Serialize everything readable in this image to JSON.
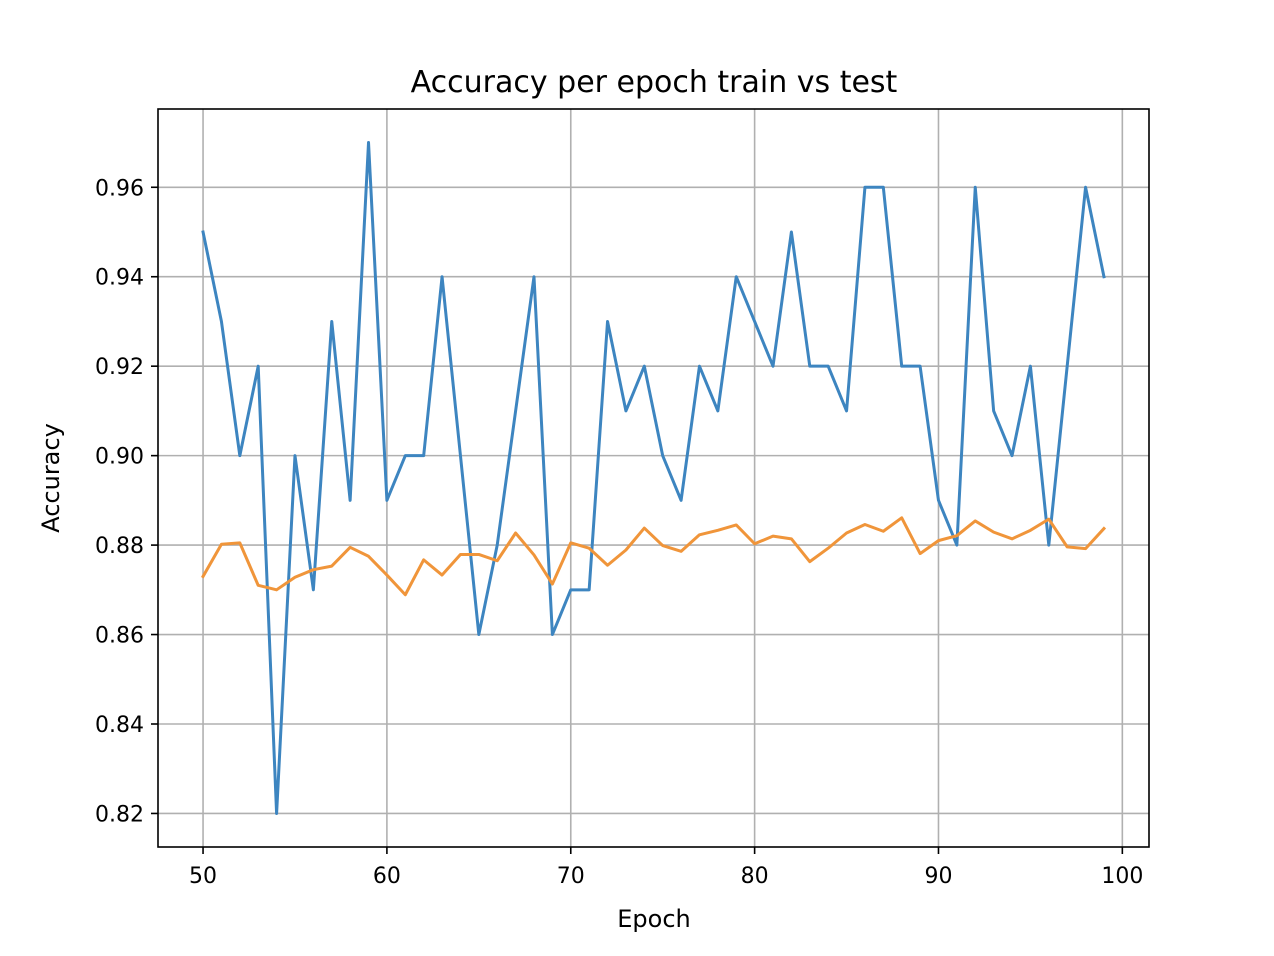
{
  "chart_data": {
    "type": "line",
    "title": "Accuracy per epoch train vs test",
    "xlabel": "Epoch",
    "ylabel": "Accuracy",
    "xlim": [
      47.55,
      101.45
    ],
    "ylim": [
      0.8125,
      0.9775
    ],
    "xticks": [
      50,
      60,
      70,
      80,
      90,
      100
    ],
    "yticks": [
      0.82,
      0.84,
      0.86,
      0.88,
      0.9,
      0.92,
      0.94,
      0.96
    ],
    "ytick_labels": [
      "0.82",
      "0.84",
      "0.86",
      "0.88",
      "0.90",
      "0.92",
      "0.94",
      "0.96"
    ],
    "grid": true,
    "x": [
      50,
      51,
      52,
      53,
      54,
      55,
      56,
      57,
      58,
      59,
      60,
      61,
      62,
      63,
      64,
      65,
      66,
      67,
      68,
      69,
      70,
      71,
      72,
      73,
      74,
      75,
      76,
      77,
      78,
      79,
      80,
      81,
      82,
      83,
      84,
      85,
      86,
      87,
      88,
      89,
      90,
      91,
      92,
      93,
      94,
      95,
      96,
      97,
      98,
      99
    ],
    "series": [
      {
        "color": "#3d85c0",
        "values": [
          0.95,
          0.93,
          0.9,
          0.92,
          0.82,
          0.9,
          0.87,
          0.93,
          0.89,
          0.97,
          0.89,
          0.9,
          0.9,
          0.94,
          0.9,
          0.86,
          0.88,
          0.91,
          0.94,
          0.86,
          0.87,
          0.87,
          0.93,
          0.91,
          0.92,
          0.9,
          0.89,
          0.92,
          0.91,
          0.94,
          0.93,
          0.92,
          0.95,
          0.92,
          0.92,
          0.91,
          0.96,
          0.96,
          0.92,
          0.92,
          0.89,
          0.88,
          0.96,
          0.91,
          0.9,
          0.92,
          0.88,
          0.92,
          0.96,
          0.94
        ]
      },
      {
        "color": "#f0953a",
        "values": [
          0.873,
          0.8802,
          0.8805,
          0.871,
          0.87,
          0.8728,
          0.8745,
          0.8753,
          0.8795,
          0.8775,
          0.8733,
          0.8689,
          0.8767,
          0.8733,
          0.8779,
          0.8779,
          0.8765,
          0.8827,
          0.8778,
          0.8713,
          0.8805,
          0.8793,
          0.8755,
          0.8789,
          0.8838,
          0.8799,
          0.8786,
          0.8823,
          0.8833,
          0.8845,
          0.8803,
          0.882,
          0.8814,
          0.8763,
          0.8793,
          0.8827,
          0.8846,
          0.8831,
          0.8861,
          0.8781,
          0.881,
          0.8821,
          0.8854,
          0.8829,
          0.8814,
          0.8833,
          0.8858,
          0.8796,
          0.8792,
          0.8837
        ]
      }
    ]
  }
}
